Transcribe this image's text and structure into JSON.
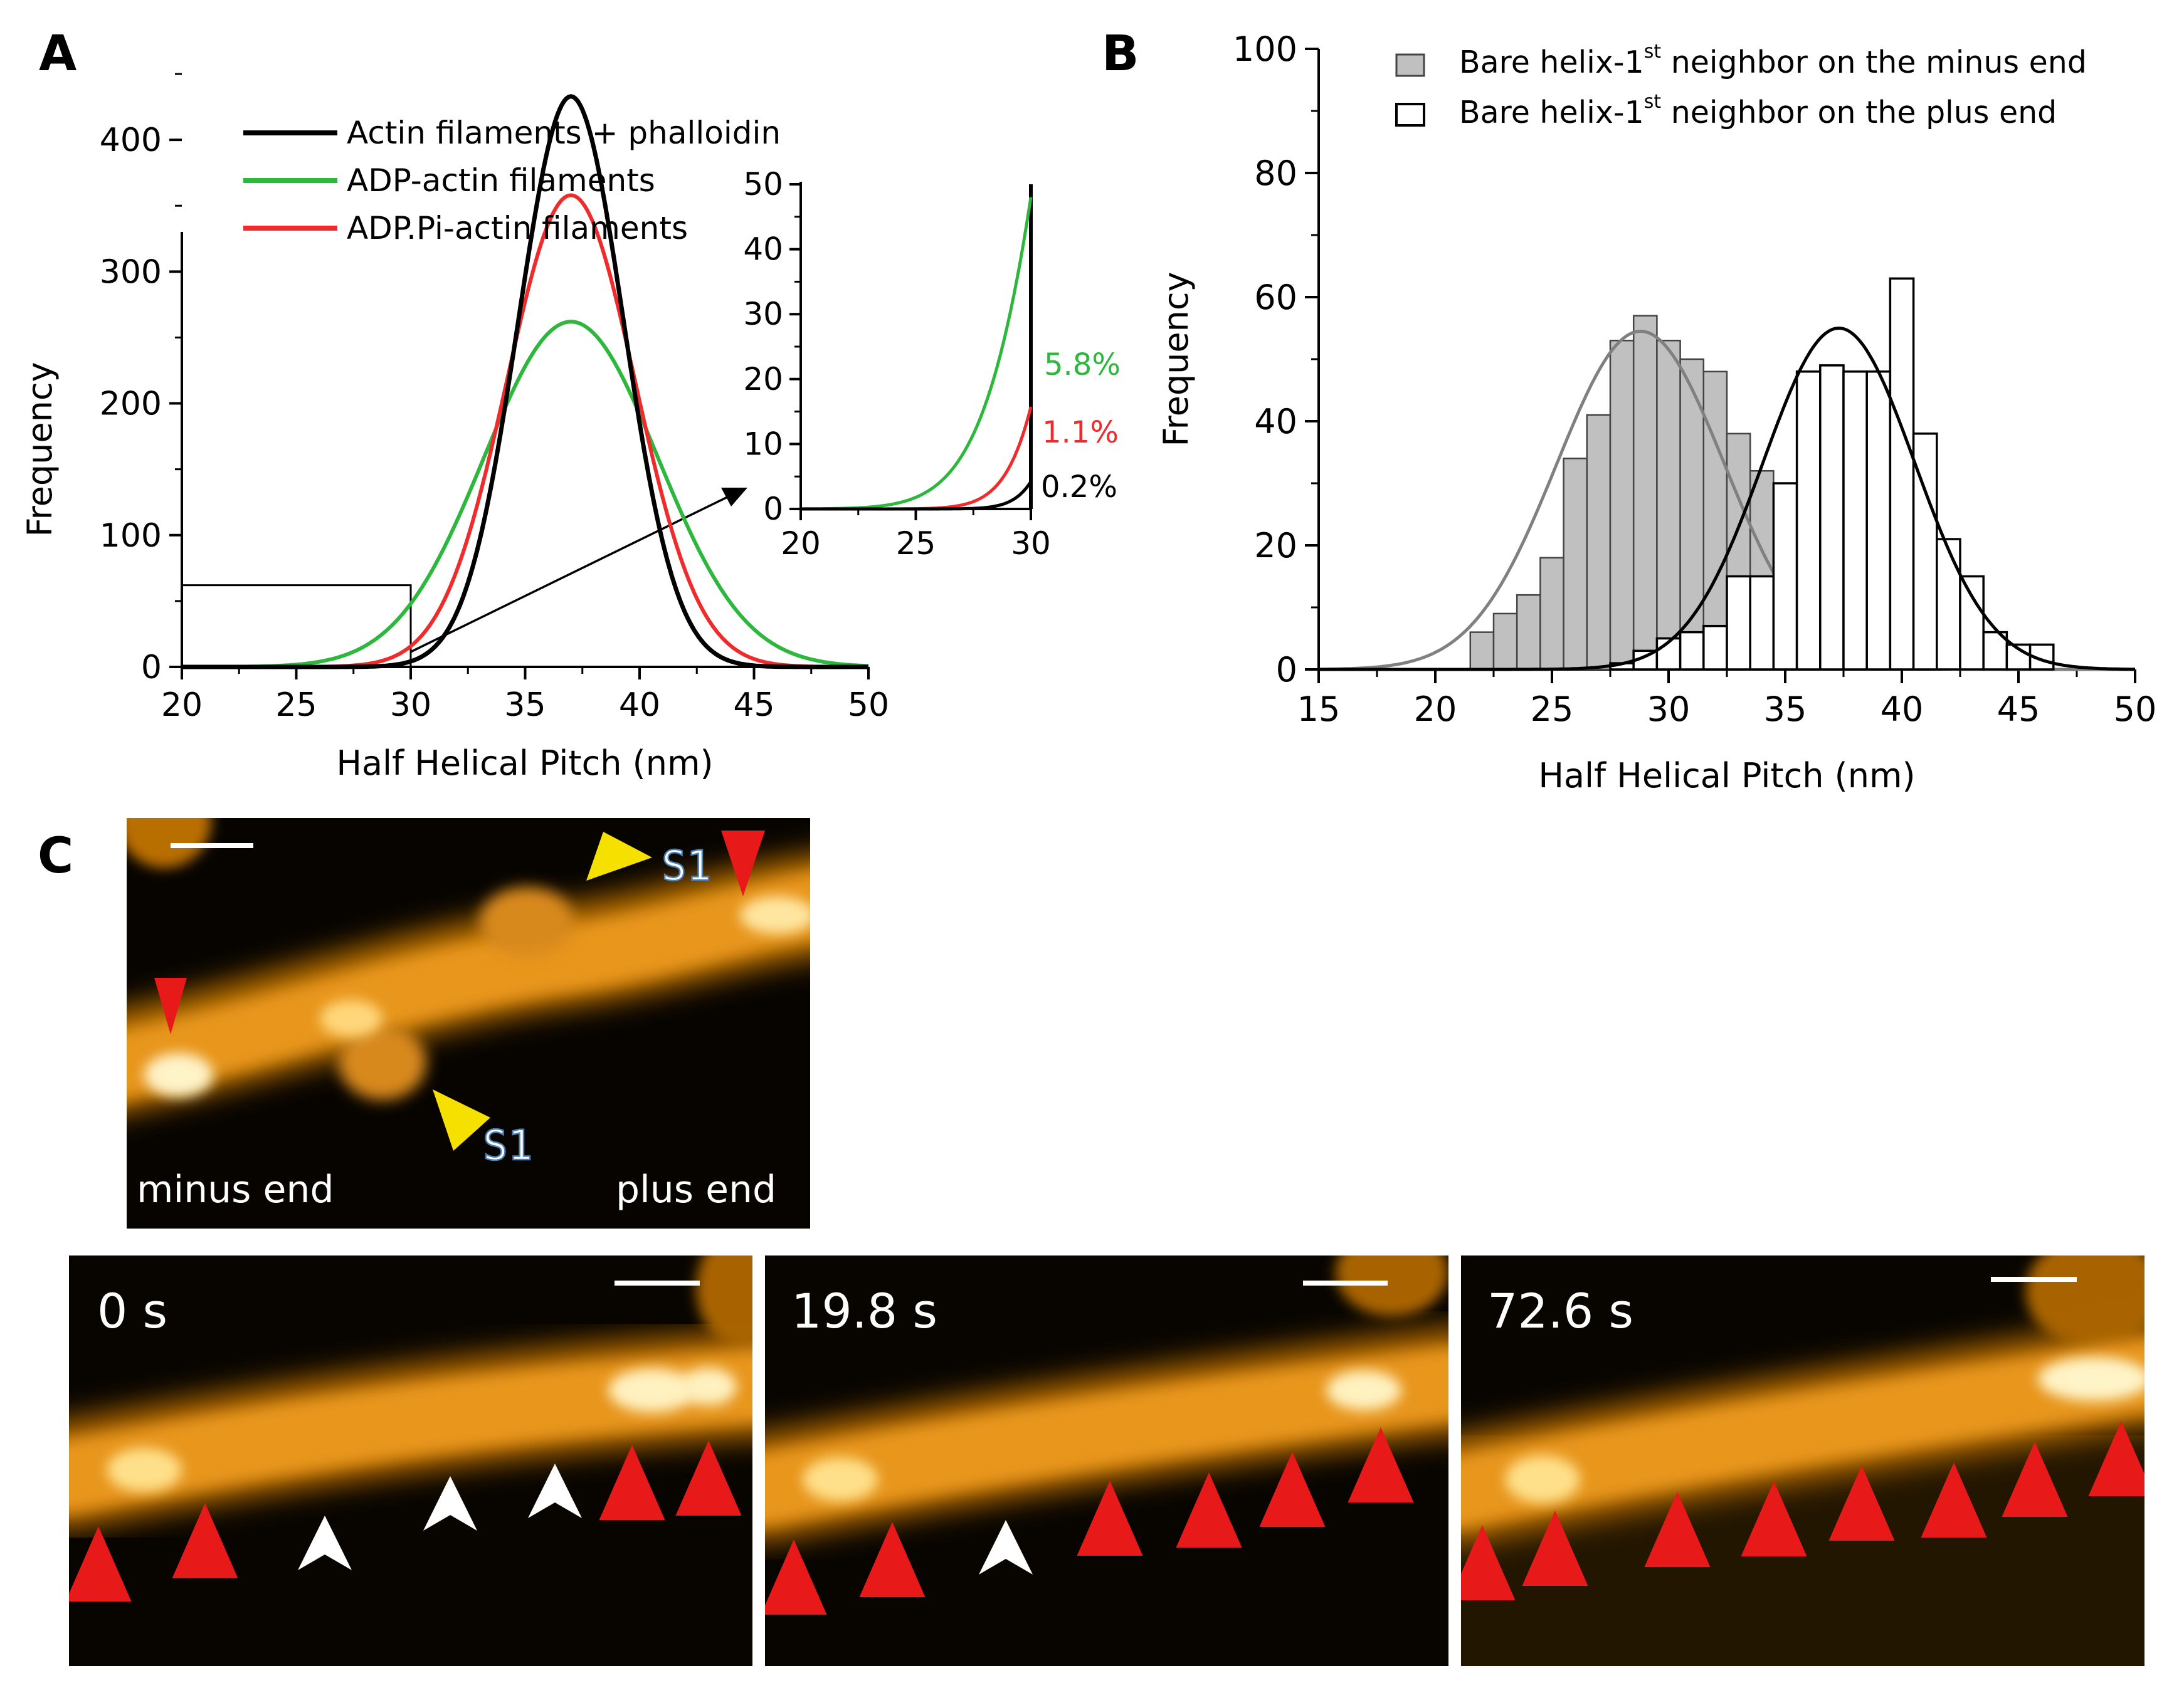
{
  "figure": {
    "panel_a_letter": "A",
    "panel_b_letter": "B",
    "panel_c_letter": "C"
  },
  "chart_data": [
    {
      "id": "A-main",
      "type": "line",
      "xlabel": "Half Helical Pitch (nm)",
      "ylabel": "Frequency",
      "xlim": [
        20,
        50
      ],
      "ylim": [
        0,
        450
      ],
      "xticks": [
        20,
        25,
        30,
        35,
        40,
        45,
        50
      ],
      "yticks": [
        0,
        100,
        200,
        300,
        400
      ],
      "legend_position": "top-center",
      "series": [
        {
          "name": "Actin filaments + phalloidin",
          "color": "#000000",
          "peak": 433,
          "mean": 37.0,
          "sigma": 2.3
        },
        {
          "name": "ADP-actin filaments",
          "color": "#2db83d",
          "peak": 262,
          "mean": 37.0,
          "sigma": 3.8
        },
        {
          "name": "ADP.Pi-actin filaments",
          "color": "#ef2b2b",
          "peak": 358,
          "mean": 37.0,
          "sigma": 2.8
        }
      ],
      "zoom_box": {
        "x": [
          20,
          30
        ],
        "y": [
          0,
          62
        ]
      }
    },
    {
      "id": "A-inset",
      "type": "line",
      "xlim": [
        20,
        30
      ],
      "ylim": [
        0,
        50
      ],
      "xticks": [
        20,
        25,
        30
      ],
      "yticks": [
        0,
        10,
        20,
        30,
        40,
        50
      ],
      "annotations": [
        {
          "text": "5.8%",
          "color": "#2db83d"
        },
        {
          "text": "1.1%",
          "color": "#ef2b2b"
        },
        {
          "text": "0.2%",
          "color": "#000000"
        }
      ]
    },
    {
      "id": "B",
      "type": "bar",
      "xlabel": "Half Helical Pitch (nm)",
      "ylabel": "Frequency",
      "xlim": [
        15,
        50
      ],
      "ylim": [
        0,
        100
      ],
      "xticks": [
        15,
        20,
        25,
        30,
        35,
        40,
        45,
        50
      ],
      "yticks": [
        0,
        20,
        40,
        60,
        80,
        100
      ],
      "bin_width": 1,
      "series": [
        {
          "name": "Bare helix-1",
          "superscript": "st",
          "name_suffix": " neighbor on the minus end",
          "fill": "#c0c0c0",
          "edge": "#444444",
          "bin_starts": [
            21.5,
            22.5,
            23.5,
            24.5,
            25.5,
            26.5,
            27.5,
            28.5,
            29.5,
            30.5,
            31.5,
            32.5,
            33.5,
            34.5,
            35.5,
            36.5,
            37.5,
            38.5
          ],
          "values": [
            6,
            9,
            12,
            18,
            34,
            41,
            53,
            57,
            53,
            50,
            48,
            38,
            32,
            23,
            10,
            8,
            2,
            1
          ],
          "fit": {
            "peak": 54.5,
            "mean": 28.8,
            "sigma": 3.6,
            "color": "#808080"
          }
        },
        {
          "name": "Bare helix-1",
          "superscript": "st",
          "name_suffix": " neighbor on the plus end",
          "fill": "#ffffff",
          "edge": "#000000",
          "bin_starts": [
            27.5,
            28.5,
            29.5,
            30.5,
            31.5,
            32.5,
            33.5,
            34.5,
            35.5,
            36.5,
            37.5,
            38.5,
            39.5,
            40.5,
            41.5,
            42.5,
            43.5,
            44.5,
            45.5
          ],
          "values": [
            1,
            3,
            5,
            6,
            7,
            15,
            15,
            30,
            48,
            49,
            48,
            48,
            63,
            38,
            21,
            15,
            6,
            4,
            4
          ],
          "fit": {
            "peak": 55,
            "mean": 37.3,
            "sigma": 3.25,
            "color": "#000000"
          }
        }
      ]
    }
  ],
  "panel_c": {
    "top_image": {
      "labels": {
        "minus": "minus end",
        "plus": "plus end",
        "s1_top": "S1",
        "s1_bottom": "S1"
      }
    },
    "frames": [
      {
        "time": "0 s"
      },
      {
        "time": "19.8 s"
      },
      {
        "time": "72.6 s"
      }
    ]
  }
}
